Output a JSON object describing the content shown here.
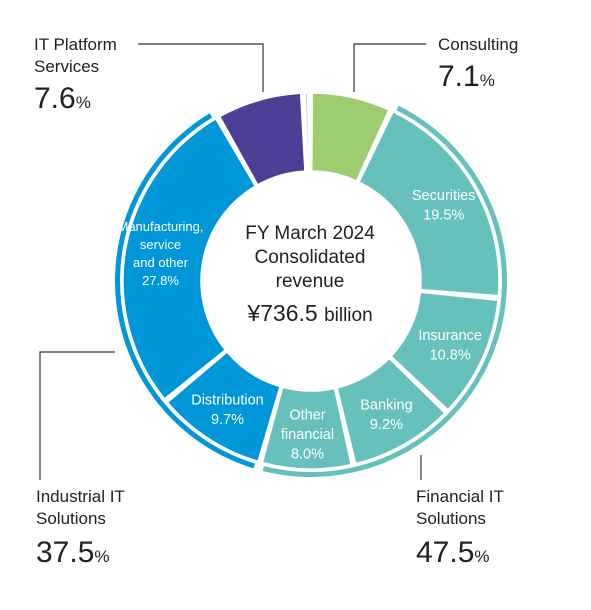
{
  "chart_data": {
    "type": "pie",
    "center_label": {
      "line1": "FY March 2024",
      "line2": "Consolidated",
      "line3": "revenue",
      "amount": "¥736.5",
      "unit": "billion"
    },
    "segments": [
      {
        "label": "Consulting",
        "value": 7.1,
        "display": "",
        "color": "#9dcd6e",
        "label_color": "#ffffff"
      },
      {
        "label": "Securities",
        "value": 19.5,
        "display": "Securities\n19.5%",
        "color": "#66c1bc",
        "label_color": "#ffffff"
      },
      {
        "label": "Insurance",
        "value": 10.8,
        "display": "Insurance\n10.8%",
        "color": "#66c1bc",
        "label_color": "#ffffff"
      },
      {
        "label": "Banking",
        "value": 9.2,
        "display": "Banking\n9.2%",
        "color": "#66c1bc",
        "label_color": "#ffffff"
      },
      {
        "label": "Other financial",
        "value": 8.0,
        "display": "Other\nfinancial\n8.0%",
        "color": "#66c1bc",
        "label_color": "#ffffff"
      },
      {
        "label": "Distribution",
        "value": 9.7,
        "display": "Distribution\n9.7%",
        "color": "#0097d9",
        "label_color": "#ffffff"
      },
      {
        "label": "Manufacturing, service and other",
        "value": 27.8,
        "display": "Manufacturing,\nservice\nand other\n27.8%",
        "color": "#0097d9",
        "label_color": "#ffffff"
      },
      {
        "label": "IT Platform Services",
        "value": 7.6,
        "display": "",
        "color": "#4e3f96",
        "label_color": "#ffffff"
      },
      {
        "label": "",
        "value": 0.6,
        "display": "",
        "color": "#c8c8c8",
        "label_color": "#ffffff"
      }
    ],
    "groups": [
      {
        "name": "Consulting",
        "value": 7.1,
        "pct": "7.1",
        "unit": "%",
        "ring_color": ""
      },
      {
        "name": "Financial IT\nSolutions",
        "value": 47.5,
        "pct": "47.5",
        "unit": "%",
        "ring_color": "#66c1bc"
      },
      {
        "name": "Industrial IT\nSolutions",
        "value": 37.5,
        "pct": "37.5",
        "unit": "%",
        "ring_color": "#0097d9"
      },
      {
        "name": "IT Platform\nServices",
        "value": 7.6,
        "pct": "7.6",
        "unit": "%",
        "ring_color": ""
      }
    ]
  }
}
